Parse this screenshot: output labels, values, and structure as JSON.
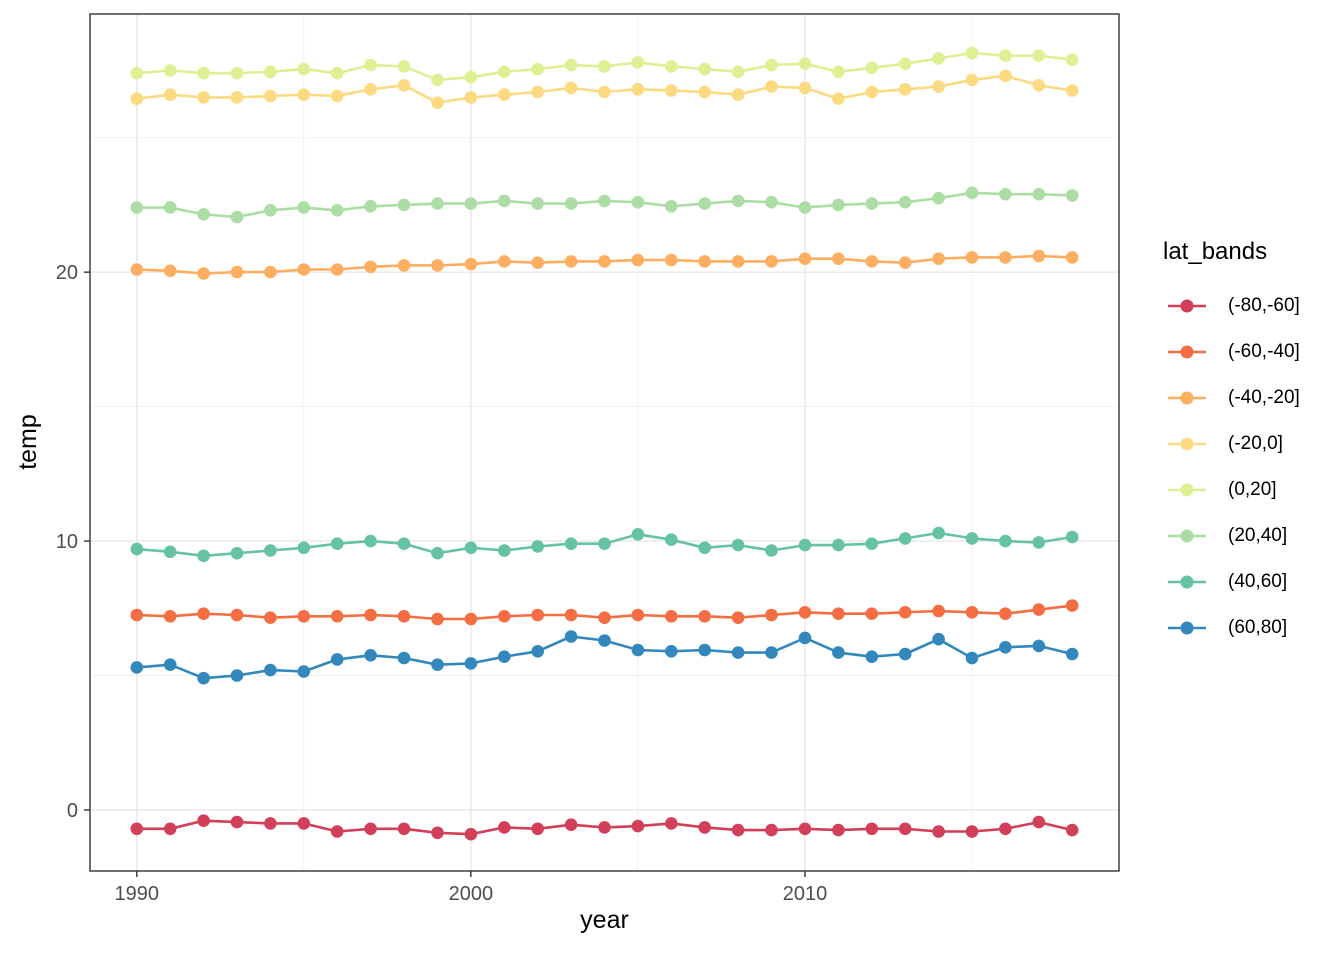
{
  "axes": {
    "x_label": "year",
    "y_label": "temp"
  },
  "legend": {
    "title": "lat_bands",
    "entries": [
      "(-80,-60]",
      "(-60,-40]",
      "(-40,-20]",
      "(-20,0]",
      "(0,20]",
      "(20,40]",
      "(40,60]",
      "(60,80]"
    ]
  },
  "theme": {
    "background": "#ffffff",
    "panel_border": "#333333",
    "grid_major": "#e8e8e8",
    "grid_minor": "#f0f0f0",
    "tick_color": "#333333",
    "tick_label_color": "#4d4d4d"
  },
  "chart_data": {
    "type": "line",
    "title": "",
    "xlabel": "year",
    "ylabel": "temp",
    "legend_title": "lat_bands",
    "legend_position": "right",
    "grid": true,
    "points": true,
    "xlim": [
      1988.6,
      2019.4
    ],
    "ylim": [
      -2.27,
      29.6
    ],
    "x_ticks": [
      1990,
      2000,
      2010
    ],
    "y_ticks": [
      0,
      10,
      20
    ],
    "x_minor": [
      1995,
      2005,
      2015
    ],
    "y_minor": [
      5,
      15,
      25
    ],
    "x": [
      1990,
      1991,
      1992,
      1993,
      1994,
      1995,
      1996,
      1997,
      1998,
      1999,
      2000,
      2001,
      2002,
      2003,
      2004,
      2005,
      2006,
      2007,
      2008,
      2009,
      2010,
      2011,
      2012,
      2013,
      2014,
      2015,
      2016,
      2017,
      2018
    ],
    "series": [
      {
        "name": "(-80,-60]",
        "color": "#d23f58",
        "values": [
          -0.7,
          -0.7,
          -0.4,
          -0.45,
          -0.5,
          -0.5,
          -0.8,
          -0.7,
          -0.7,
          -0.85,
          -0.9,
          -0.65,
          -0.7,
          -0.55,
          -0.65,
          -0.6,
          -0.5,
          -0.65,
          -0.75,
          -0.75,
          -0.7,
          -0.75,
          -0.7,
          -0.7,
          -0.8,
          -0.8,
          -0.7,
          -0.45,
          -0.75
        ]
      },
      {
        "name": "(-60,-40]",
        "color": "#f46d43",
        "values": [
          7.25,
          7.2,
          7.3,
          7.25,
          7.15,
          7.2,
          7.2,
          7.25,
          7.2,
          7.1,
          7.1,
          7.2,
          7.25,
          7.25,
          7.15,
          7.25,
          7.2,
          7.2,
          7.15,
          7.25,
          7.35,
          7.3,
          7.3,
          7.35,
          7.4,
          7.35,
          7.3,
          7.45,
          7.6
        ]
      },
      {
        "name": "(-40,-20]",
        "color": "#fdae61",
        "values": [
          20.1,
          20.05,
          19.95,
          20.0,
          20.0,
          20.1,
          20.1,
          20.2,
          20.25,
          20.25,
          20.3,
          20.4,
          20.35,
          20.4,
          20.4,
          20.45,
          20.45,
          20.4,
          20.4,
          20.4,
          20.5,
          20.5,
          20.4,
          20.35,
          20.5,
          20.55,
          20.55,
          20.6,
          20.55
        ]
      },
      {
        "name": "(-20,0]",
        "color": "#fcda81",
        "values": [
          26.45,
          26.6,
          26.5,
          26.5,
          26.55,
          26.6,
          26.55,
          26.8,
          26.95,
          26.3,
          26.5,
          26.6,
          26.7,
          26.85,
          26.7,
          26.8,
          26.75,
          26.7,
          26.6,
          26.9,
          26.85,
          26.45,
          26.7,
          26.8,
          26.9,
          27.15,
          27.3,
          26.95,
          26.75
        ]
      },
      {
        "name": "(0,20]",
        "color": "#ddf093",
        "values": [
          27.4,
          27.5,
          27.4,
          27.4,
          27.45,
          27.55,
          27.4,
          27.7,
          27.65,
          27.15,
          27.25,
          27.45,
          27.55,
          27.7,
          27.65,
          27.8,
          27.65,
          27.55,
          27.45,
          27.7,
          27.75,
          27.45,
          27.6,
          27.75,
          27.95,
          28.15,
          28.05,
          28.05,
          27.9
        ]
      },
      {
        "name": "(20,40]",
        "color": "#abdda4",
        "values": [
          22.4,
          22.4,
          22.15,
          22.05,
          22.3,
          22.4,
          22.3,
          22.45,
          22.5,
          22.55,
          22.55,
          22.65,
          22.55,
          22.55,
          22.65,
          22.6,
          22.45,
          22.55,
          22.65,
          22.6,
          22.4,
          22.5,
          22.55,
          22.6,
          22.75,
          22.95,
          22.9,
          22.9,
          22.85
        ]
      },
      {
        "name": "(40,60]",
        "color": "#66c2a5",
        "values": [
          9.7,
          9.6,
          9.45,
          9.55,
          9.65,
          9.75,
          9.9,
          10.0,
          9.9,
          9.55,
          9.75,
          9.65,
          9.8,
          9.9,
          9.9,
          10.25,
          10.05,
          9.75,
          9.85,
          9.65,
          9.85,
          9.85,
          9.9,
          10.1,
          10.3,
          10.1,
          10.0,
          9.95,
          10.15
        ]
      },
      {
        "name": "(60,80]",
        "color": "#3288bd",
        "values": [
          5.3,
          5.4,
          4.9,
          5.0,
          5.2,
          5.15,
          5.6,
          5.75,
          5.65,
          5.4,
          5.45,
          5.7,
          5.9,
          6.45,
          6.3,
          5.95,
          5.9,
          5.95,
          5.85,
          5.85,
          6.4,
          5.85,
          5.7,
          5.8,
          6.35,
          5.65,
          6.05,
          6.1,
          5.8
        ]
      }
    ]
  }
}
